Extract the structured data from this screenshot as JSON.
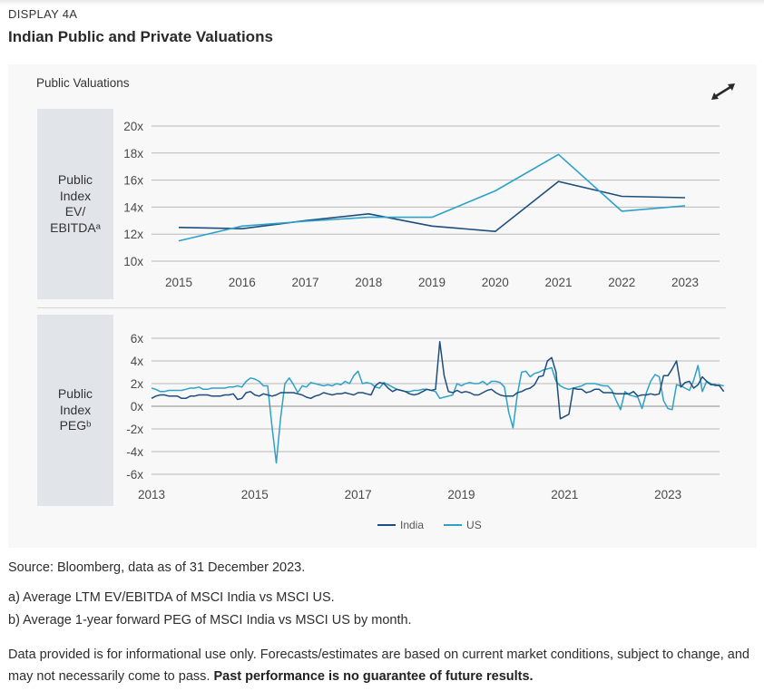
{
  "header": {
    "display_label": "DISPLAY 4A",
    "title": "Indian Public and Private Valuations"
  },
  "panel": {
    "title": "Public Valuations",
    "expand_icon": "expand-arrows-icon"
  },
  "colors": {
    "india": "#1d4e7e",
    "us": "#2ea1c9",
    "grid": "#b8b8b8",
    "rowlabel_bg": "#e1e5ea",
    "panel_bg": "#f8f8f8"
  },
  "chart_data": [
    {
      "type": "line",
      "row_label": [
        "Public",
        "Index",
        "EV/",
        "EBITDAᵃ"
      ],
      "xlabel": "",
      "ylabel": "Public Index EV/EBITDA",
      "ylim": [
        10,
        20
      ],
      "y_ticks": [
        "10x",
        "12x",
        "14x",
        "16x",
        "18x",
        "20x"
      ],
      "y_tick_values": [
        10,
        12,
        14,
        16,
        18,
        20
      ],
      "categories": [
        "2015",
        "2016",
        "2017",
        "2018",
        "2019",
        "2020",
        "2021",
        "2022",
        "2023"
      ],
      "grid": true,
      "series": [
        {
          "name": "India",
          "values": [
            12.5,
            12.4,
            13.0,
            13.5,
            12.6,
            12.2,
            15.9,
            14.8,
            14.7
          ]
        },
        {
          "name": "US",
          "values": [
            11.5,
            12.6,
            12.95,
            13.25,
            13.25,
            15.2,
            17.9,
            13.7,
            14.1
          ]
        }
      ]
    },
    {
      "type": "line",
      "row_label": [
        "Public",
        "Index",
        "PEGᵇ"
      ],
      "xlabel": "",
      "ylabel": "Public Index PEG",
      "ylim": [
        -6,
        6
      ],
      "y_ticks": [
        "-6x",
        "-4x",
        "-2x",
        "0x",
        "2x",
        "4x",
        "6x"
      ],
      "y_tick_values": [
        -6,
        -4,
        -2,
        0,
        2,
        4,
        6
      ],
      "x_ticks": [
        "2013",
        "2015",
        "2017",
        "2019",
        "2021",
        "2023"
      ],
      "x_tick_values": [
        2013,
        2015,
        2017,
        2019,
        2021,
        2023
      ],
      "xlim": [
        2013,
        2024
      ],
      "x_start": 2013.0,
      "x_step_months": 1,
      "grid": true,
      "legend": "bottom-center",
      "series": [
        {
          "name": "India",
          "values": [
            0.7,
            0.9,
            1.0,
            1.0,
            0.9,
            0.9,
            0.9,
            0.7,
            0.7,
            0.9,
            0.9,
            1.0,
            1.0,
            1.0,
            0.9,
            0.9,
            0.9,
            1.0,
            1.0,
            1.1,
            0.6,
            0.7,
            1.2,
            1.3,
            1.0,
            0.9,
            1.1,
            1.0,
            0.9,
            1.0,
            1.2,
            1.2,
            1.2,
            1.2,
            1.1,
            1.0,
            0.8,
            0.7,
            0.9,
            1.0,
            1.2,
            1.1,
            1.0,
            1.1,
            1.1,
            1.2,
            1.1,
            1.0,
            1.2,
            1.2,
            1.1,
            1.0,
            1.8,
            2.1,
            2.0,
            1.6,
            1.3,
            1.5,
            1.4,
            1.3,
            1.1,
            1.0,
            1.1,
            1.3,
            1.5,
            1.4,
            1.5,
            5.7,
            2.7,
            1.3,
            1.2,
            1.4,
            1.2,
            1.3,
            1.2,
            1.0,
            1.0,
            1.2,
            1.4,
            1.5,
            1.2,
            1.0,
            0.9,
            0.9,
            0.9,
            1.2,
            1.3,
            1.5,
            1.6,
            1.9,
            2.6,
            2.7,
            4.0,
            4.3,
            3.0,
            -1.1,
            -0.9,
            -0.7,
            1.6,
            1.5,
            1.5,
            1.2,
            1.3,
            1.5,
            1.5,
            1.2,
            1.2,
            1.2,
            1.1,
            1.1,
            1.1,
            1.1,
            1.3,
            0.9,
            1.0,
            1.0,
            1.1,
            1.0,
            1.1,
            2.7,
            2.7,
            3.3,
            4.0,
            1.7,
            2.1,
            2.2,
            1.6,
            1.9,
            2.6,
            2.2,
            1.9,
            1.9,
            1.8,
            1.3
          ]
        },
        {
          "name": "US",
          "values": [
            1.6,
            1.5,
            1.3,
            1.3,
            1.4,
            1.4,
            1.4,
            1.4,
            1.5,
            1.6,
            1.6,
            1.7,
            1.5,
            1.5,
            1.6,
            1.6,
            1.6,
            1.6,
            1.7,
            1.7,
            1.8,
            1.7,
            2.2,
            2.5,
            2.4,
            2.2,
            1.8,
            1.8,
            -1.8,
            -5.0,
            -1.0,
            2.0,
            2.5,
            1.9,
            1.2,
            1.8,
            1.7,
            2.1,
            2.0,
            1.9,
            1.8,
            1.9,
            1.8,
            2.0,
            1.9,
            2.2,
            2.0,
            2.7,
            3.1,
            2.0,
            2.1,
            2.0,
            1.7,
            1.6,
            2.1,
            1.9,
            1.7,
            1.5,
            1.4,
            1.3,
            1.3,
            1.4,
            1.4,
            1.5,
            1.5,
            1.4,
            1.3,
            0.7,
            0.8,
            0.9,
            1.0,
            2.0,
            1.8,
            2.0,
            2.1,
            2.0,
            2.0,
            2.2,
            1.9,
            2.2,
            2.2,
            2.1,
            1.7,
            -0.5,
            -1.9,
            1.0,
            3.0,
            3.1,
            2.6,
            2.9,
            3.0,
            3.2,
            3.3,
            3.4,
            2.2,
            1.8,
            1.6,
            1.5,
            1.6,
            1.7,
            1.8,
            2.0,
            2.0,
            2.0,
            1.9,
            1.8,
            1.8,
            1.4,
            0.5,
            -0.3,
            1.3,
            1.0,
            0.9,
            0.8,
            -0.2,
            1.2,
            2.2,
            2.8,
            2.6,
            0.5,
            -0.2,
            -0.3,
            1.9,
            1.8,
            1.6,
            1.4,
            2.3,
            3.6,
            1.3,
            2.2,
            2.0,
            1.8,
            1.9,
            1.8
          ]
        }
      ]
    }
  ],
  "legend": {
    "items": [
      {
        "label": "India"
      },
      {
        "label": "US"
      }
    ]
  },
  "footnotes": {
    "source": "Source: Bloomberg, data as of 31 December 2023.",
    "note_a": "a) Average LTM EV/EBITDA of MSCI India vs MSCI US.",
    "note_b": "b) Average 1-year forward PEG of MSCI India vs MSCI US by month.",
    "disclaimer": "Data provided is for informational use only. Forecasts/estimates are based on current market conditions, subject to change, and may not necessarily come to pass.",
    "disclaimer_bold": "Past performance is no guarantee of future results."
  }
}
